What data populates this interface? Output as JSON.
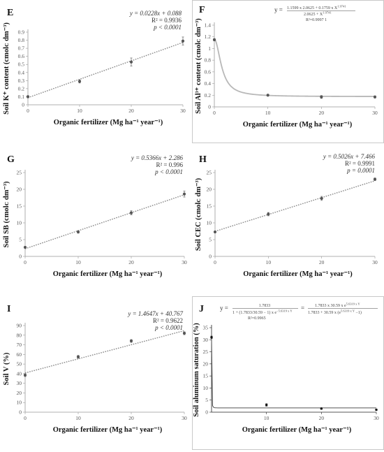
{
  "chart_data": [
    {
      "id": "E",
      "type": "scatter",
      "letter": "E",
      "xlabel": "Organic fertilizer (Mg ha⁻¹ year⁻¹)",
      "ylabel": "Soil K⁺ content (cmolᴄ dm⁻³)",
      "x": [
        0,
        10,
        20,
        30
      ],
      "y": [
        0.1,
        0.29,
        0.53,
        0.79
      ],
      "err": [
        0.015,
        0.02,
        0.05,
        0.05
      ],
      "xlim": [
        0,
        30
      ],
      "ylim": [
        0,
        0.9
      ],
      "xticks": [
        "0",
        "10",
        "20",
        "30"
      ],
      "yticks": [
        "0",
        "0.1",
        "0.2",
        "0.3",
        "0.4",
        "0.5",
        "0.6",
        "0.7",
        "0.8",
        "0.9"
      ],
      "fit": {
        "kind": "linear",
        "slope": 0.0228,
        "intercept": 0.088
      },
      "equation": [
        "y = 0.0228x + 0.088",
        "R² = 0.9936",
        "p < 0.0001"
      ]
    },
    {
      "id": "F",
      "type": "scatter",
      "letter": "F",
      "xlabel": "Organic fertilizer (Mg ha⁻¹ year⁻¹)",
      "ylabel": "Soil Al³⁺ content (cmolᴄ dm⁻³)",
      "x": [
        0,
        10,
        20,
        30
      ],
      "y": [
        1.15,
        0.2,
        0.17,
        0.17
      ],
      "err": [
        0.02,
        0.01,
        0.025,
        0.02
      ],
      "xlim": [
        0,
        30
      ],
      "ylim": [
        0,
        1.4
      ],
      "xticks": [
        "0",
        "10",
        "20",
        "30"
      ],
      "yticks": [
        "0",
        "0.2",
        "0.4",
        "0.6",
        "0.8",
        "1",
        "1.2",
        "1.4"
      ],
      "fit": {
        "kind": "hill",
        "a": 1.1599,
        "b": 2.0625,
        "c": 0.1759,
        "n": 1.9741
      },
      "equation_lhs": "y =",
      "equation_num": "1.1599 x 2.0625 + 0.1759 x X",
      "equation_num_exp": "1.9741",
      "equation_den": "2.0625 + X",
      "equation_den_exp": "1.9741",
      "equation_r2": "R²=0.9997 1"
    },
    {
      "id": "G",
      "type": "scatter",
      "letter": "G",
      "xlabel": "Organic fertilizer (Mg ha⁻¹ year⁻¹)",
      "ylabel": "Soil SB (cmolᴄ dm⁻³)",
      "x": [
        0,
        10,
        20,
        30
      ],
      "y": [
        2.7,
        7.3,
        13.0,
        18.6
      ],
      "err": [
        0.3,
        0.4,
        0.6,
        0.9
      ],
      "xlim": [
        0,
        30
      ],
      "ylim": [
        0,
        25
      ],
      "xticks": [
        "0",
        "10",
        "20",
        "30"
      ],
      "yticks": [
        "0",
        "5",
        "10",
        "15",
        "20",
        "25"
      ],
      "fit": {
        "kind": "linear",
        "slope": 0.5366,
        "intercept": 2.286
      },
      "equation": [
        "y = 0.5366x + 2.286",
        "R² = 0.996",
        "p < 0.0001"
      ]
    },
    {
      "id": "H",
      "type": "scatter",
      "letter": "H",
      "xlabel": "Organic fertilizer (Mg ha⁻¹ year⁻¹)",
      "ylabel": "Soil CEC (cmolᴄ dm⁻³)",
      "x": [
        0,
        10,
        20,
        30
      ],
      "y": [
        7.3,
        12.6,
        17.3,
        23.0
      ],
      "err": [
        0.2,
        0.5,
        0.6,
        0.4
      ],
      "xlim": [
        0,
        30
      ],
      "ylim": [
        0,
        25
      ],
      "xticks": [
        "0",
        "10",
        "20",
        "30"
      ],
      "yticks": [
        "0",
        "5",
        "10",
        "15",
        "20",
        "25"
      ],
      "fit": {
        "kind": "linear",
        "slope": 0.5026,
        "intercept": 7.466
      },
      "equation": [
        "y = 0.5026x + 7.466",
        "R² = 0.9991",
        "p = 0.0001"
      ]
    },
    {
      "id": "I",
      "type": "scatter",
      "letter": "I",
      "xlabel": "Organic fertilizer (Mg ha⁻¹ year⁻¹)",
      "ylabel": "Soil V (%)",
      "x": [
        0,
        10,
        20,
        30
      ],
      "y": [
        38.5,
        57.5,
        74.0,
        82.0
      ],
      "err": [
        1.5,
        1.5,
        1.5,
        1.5
      ],
      "xlim": [
        0,
        30
      ],
      "ylim": [
        0,
        90
      ],
      "xticks": [
        "0",
        "10",
        "20",
        "30"
      ],
      "yticks": [
        "0",
        "10",
        "20",
        "30",
        "40",
        "50",
        "60",
        "70",
        "80",
        "90"
      ],
      "fit": {
        "kind": "linear",
        "slope": 1.4647,
        "intercept": 40.767
      },
      "equation": [
        "y = 1.4647x + 40.767",
        "R² = 0.9622",
        "p < 0.0001"
      ]
    },
    {
      "id": "J",
      "type": "scatter",
      "letter": "J",
      "xlabel": "Organic fertilizer (Mg ha⁻¹ year⁻¹)",
      "ylabel": "Soil aluminum saturation (%)",
      "x": [
        0,
        10,
        20,
        30
      ],
      "y": [
        31.0,
        3.0,
        1.5,
        1.0
      ],
      "err": [
        0.5,
        0.5,
        0.3,
        0.3
      ],
      "xlim": [
        0,
        30
      ],
      "ylim": [
        0,
        35
      ],
      "xticks": [
        "10",
        "20",
        "30"
      ],
      "yticks": [
        "0",
        "5",
        "10",
        "15",
        "20",
        "25",
        "30",
        "35"
      ],
      "fit": {
        "kind": "logistic",
        "A": 1.7833,
        "B": 30.59,
        "k": 5.6319
      },
      "equation_lhs": "y =",
      "eq1_num": "1.7833",
      "eq1_den": "1 + (1.7833/30.59 − 1) x e",
      "eq1_den_exp": "−5.6319 x Y",
      "equation_eq": "=",
      "eq2_num": "1.7833 x 30.59 x e",
      "eq2_num_exp": "5.6319 x Y",
      "eq2_den": "1.7833 + 30.59 x (e",
      "eq2_den_exp": "5.6319 x Y",
      "eq2_den_tail": " −1)",
      "equation_r2": "R²=0.9965"
    }
  ]
}
